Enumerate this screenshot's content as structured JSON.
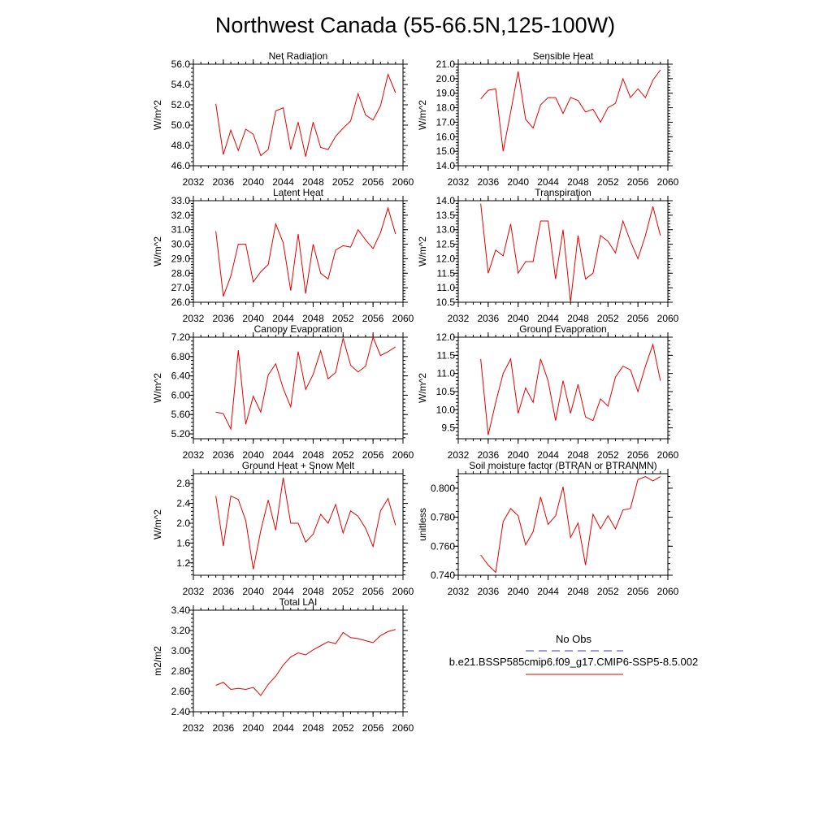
{
  "figure": {
    "title": "Northwest Canada (55-66.5N,125-100W)",
    "legend": {
      "obs_label": "No Obs",
      "obs_color": "#3a3ad6",
      "model_label": "b.e21.BSSP585cmip6.f09_g17.CMIP6-SSP5-8.5.002",
      "model_color": "#e60000"
    }
  },
  "chart_data": [
    {
      "type": "line",
      "title": "Net Radiation",
      "ylabel": "W/m^2",
      "xlim": [
        2032,
        2060
      ],
      "ylim": [
        46.0,
        56.0
      ],
      "xticks": [
        2032,
        2036,
        2040,
        2044,
        2048,
        2052,
        2056,
        2060
      ],
      "yticks": [
        46.0,
        48.0,
        50.0,
        52.0,
        54.0,
        56.0
      ],
      "ytick_labels": [
        "46.0",
        "48.0",
        "50.0",
        "52.0",
        "54.0",
        "56.0"
      ],
      "x": [
        2035,
        2036,
        2037,
        2038,
        2039,
        2040,
        2041,
        2042,
        2043,
        2044,
        2045,
        2046,
        2047,
        2048,
        2049,
        2050,
        2051,
        2052,
        2053,
        2054,
        2055,
        2056,
        2057,
        2058,
        2059
      ],
      "series": [
        {
          "color": "#e60000",
          "values": [
            52.1,
            47.1,
            49.5,
            47.5,
            49.6,
            49.1,
            47.0,
            47.6,
            51.4,
            51.7,
            47.6,
            50.3,
            46.9,
            50.3,
            47.8,
            47.6,
            48.9,
            49.7,
            50.4,
            53.1,
            51.0,
            50.5,
            51.9,
            55.0,
            53.2
          ]
        }
      ]
    },
    {
      "type": "line",
      "title": "Sensible Heat",
      "ylabel": "W/m^2",
      "xlim": [
        2032,
        2060
      ],
      "ylim": [
        14.0,
        21.0
      ],
      "xticks": [
        2032,
        2036,
        2040,
        2044,
        2048,
        2052,
        2056,
        2060
      ],
      "yticks": [
        14.0,
        15.0,
        16.0,
        17.0,
        18.0,
        19.0,
        20.0,
        21.0
      ],
      "ytick_labels": [
        "14.0",
        "15.0",
        "16.0",
        "17.0",
        "18.0",
        "19.0",
        "20.0",
        "21.0"
      ],
      "x": [
        2035,
        2036,
        2037,
        2038,
        2039,
        2040,
        2041,
        2042,
        2043,
        2044,
        2045,
        2046,
        2047,
        2048,
        2049,
        2050,
        2051,
        2052,
        2053,
        2054,
        2055,
        2056,
        2057,
        2058,
        2059
      ],
      "series": [
        {
          "color": "#e60000",
          "values": [
            18.6,
            19.2,
            19.3,
            15.0,
            17.7,
            20.5,
            17.2,
            16.6,
            18.2,
            18.7,
            18.7,
            17.6,
            18.7,
            18.5,
            17.7,
            17.9,
            17.0,
            18.0,
            18.3,
            20.0,
            18.7,
            19.3,
            18.7,
            19.9,
            20.6
          ]
        }
      ]
    },
    {
      "type": "line",
      "title": "Latent Heat",
      "ylabel": "W/m^2",
      "xlim": [
        2032,
        2060
      ],
      "ylim": [
        26.0,
        33.0
      ],
      "xticks": [
        2032,
        2036,
        2040,
        2044,
        2048,
        2052,
        2056,
        2060
      ],
      "yticks": [
        26.0,
        27.0,
        28.0,
        29.0,
        30.0,
        31.0,
        32.0,
        33.0
      ],
      "ytick_labels": [
        "26.0",
        "27.0",
        "28.0",
        "29.0",
        "30.0",
        "31.0",
        "32.0",
        "33.0"
      ],
      "x": [
        2035,
        2036,
        2037,
        2038,
        2039,
        2040,
        2041,
        2042,
        2043,
        2044,
        2045,
        2046,
        2047,
        2048,
        2049,
        2050,
        2051,
        2052,
        2053,
        2054,
        2055,
        2056,
        2057,
        2058,
        2059
      ],
      "series": [
        {
          "color": "#e60000",
          "values": [
            30.9,
            26.4,
            27.8,
            30.0,
            30.0,
            27.4,
            28.1,
            28.6,
            31.4,
            30.1,
            26.8,
            30.7,
            26.6,
            30.0,
            28.0,
            27.6,
            29.6,
            29.9,
            29.8,
            31.0,
            30.3,
            29.7,
            30.8,
            32.5,
            30.7
          ]
        }
      ]
    },
    {
      "type": "line",
      "title": "Transpiration",
      "ylabel": "W/m^2",
      "xlim": [
        2032,
        2060
      ],
      "ylim": [
        10.5,
        14.0
      ],
      "xticks": [
        2032,
        2036,
        2040,
        2044,
        2048,
        2052,
        2056,
        2060
      ],
      "yticks": [
        10.5,
        11.0,
        11.5,
        12.0,
        12.5,
        13.0,
        13.5,
        14.0
      ],
      "ytick_labels": [
        "10.5",
        "11.0",
        "11.5",
        "12.0",
        "12.5",
        "13.0",
        "13.5",
        "14.0"
      ],
      "x": [
        2035,
        2036,
        2037,
        2038,
        2039,
        2040,
        2041,
        2042,
        2043,
        2044,
        2045,
        2046,
        2047,
        2048,
        2049,
        2050,
        2051,
        2052,
        2053,
        2054,
        2055,
        2056,
        2057,
        2058,
        2059
      ],
      "series": [
        {
          "color": "#e60000",
          "values": [
            13.9,
            11.5,
            12.3,
            12.1,
            13.2,
            11.5,
            11.9,
            11.9,
            13.3,
            13.3,
            11.3,
            13.0,
            10.5,
            12.8,
            11.3,
            11.5,
            12.8,
            12.6,
            12.2,
            13.3,
            12.6,
            12.0,
            12.8,
            13.8,
            12.8
          ]
        }
      ]
    },
    {
      "type": "line",
      "title": "Canopy Evaporation",
      "ylabel": "W/m^2",
      "xlim": [
        2032,
        2060
      ],
      "ylim": [
        5.1,
        7.2
      ],
      "xticks": [
        2032,
        2036,
        2040,
        2044,
        2048,
        2052,
        2056,
        2060
      ],
      "yticks": [
        5.2,
        5.6,
        6.0,
        6.4,
        6.8,
        7.2
      ],
      "ytick_labels": [
        "5.20",
        "5.60",
        "6.00",
        "6.40",
        "6.80",
        "7.20"
      ],
      "x": [
        2035,
        2036,
        2037,
        2038,
        2039,
        2040,
        2041,
        2042,
        2043,
        2044,
        2045,
        2046,
        2047,
        2048,
        2049,
        2050,
        2051,
        2052,
        2053,
        2054,
        2055,
        2056,
        2057,
        2058,
        2059
      ],
      "series": [
        {
          "color": "#e60000",
          "values": [
            5.65,
            5.62,
            5.3,
            6.93,
            5.4,
            5.98,
            5.65,
            6.42,
            6.65,
            6.14,
            5.76,
            6.9,
            6.12,
            6.43,
            6.92,
            6.34,
            6.47,
            7.18,
            6.62,
            6.48,
            6.6,
            7.2,
            6.82,
            6.9,
            7.0
          ]
        }
      ]
    },
    {
      "type": "line",
      "title": "Ground Evaporation",
      "ylabel": "W/m^2",
      "xlim": [
        2032,
        2060
      ],
      "ylim": [
        9.2,
        12.0
      ],
      "xticks": [
        2032,
        2036,
        2040,
        2044,
        2048,
        2052,
        2056,
        2060
      ],
      "yticks": [
        9.5,
        10.0,
        10.5,
        11.0,
        11.5,
        12.0
      ],
      "ytick_labels": [
        "9.5",
        "10.0",
        "10.5",
        "11.0",
        "11.5",
        "12.0"
      ],
      "x": [
        2035,
        2036,
        2037,
        2038,
        2039,
        2040,
        2041,
        2042,
        2043,
        2044,
        2045,
        2046,
        2047,
        2048,
        2049,
        2050,
        2051,
        2052,
        2053,
        2054,
        2055,
        2056,
        2057,
        2058,
        2059
      ],
      "series": [
        {
          "color": "#e60000",
          "values": [
            11.4,
            9.3,
            10.2,
            11.0,
            11.4,
            9.9,
            10.6,
            10.2,
            11.4,
            10.8,
            9.7,
            10.8,
            9.9,
            10.7,
            9.8,
            9.7,
            10.3,
            10.1,
            10.9,
            11.2,
            11.1,
            10.5,
            11.2,
            11.8,
            10.8
          ]
        }
      ]
    },
    {
      "type": "line",
      "title": "Ground Heat + Snow Melt",
      "ylabel": "W/m^2",
      "xlim": [
        2032,
        2060
      ],
      "ylim": [
        0.95,
        3.0
      ],
      "xticks": [
        2032,
        2036,
        2040,
        2044,
        2048,
        2052,
        2056,
        2060
      ],
      "yticks": [
        1.2,
        1.6,
        2.0,
        2.4,
        2.8
      ],
      "ytick_labels": [
        "1.2",
        "1.6",
        "2.0",
        "2.4",
        "2.8"
      ],
      "x": [
        2035,
        2036,
        2037,
        2038,
        2039,
        2040,
        2041,
        2042,
        2043,
        2044,
        2045,
        2046,
        2047,
        2048,
        2049,
        2050,
        2051,
        2052,
        2053,
        2054,
        2055,
        2056,
        2057,
        2058,
        2059
      ],
      "series": [
        {
          "color": "#e60000",
          "values": [
            2.55,
            1.54,
            2.55,
            2.48,
            2.05,
            1.07,
            1.85,
            2.47,
            1.86,
            2.92,
            2.0,
            2.0,
            1.62,
            1.78,
            2.18,
            2.0,
            2.38,
            1.8,
            2.25,
            2.14,
            1.9,
            1.53,
            2.25,
            2.5,
            1.96
          ]
        }
      ]
    },
    {
      "type": "line",
      "title": "Soil moisture factor (BTRAN or BTRANMN)",
      "ylabel": "unitless",
      "xlim": [
        2032,
        2060
      ],
      "ylim": [
        0.74,
        0.81
      ],
      "xticks": [
        2032,
        2036,
        2040,
        2044,
        2048,
        2052,
        2056,
        2060
      ],
      "yticks": [
        0.74,
        0.76,
        0.78,
        0.8
      ],
      "ytick_labels": [
        "0.740",
        "0.760",
        "0.780",
        "0.800"
      ],
      "x": [
        2035,
        2036,
        2037,
        2038,
        2039,
        2040,
        2041,
        2042,
        2043,
        2044,
        2045,
        2046,
        2047,
        2048,
        2049,
        2050,
        2051,
        2052,
        2053,
        2054,
        2055,
        2056,
        2057,
        2058,
        2059
      ],
      "series": [
        {
          "color": "#e60000",
          "values": [
            0.754,
            0.747,
            0.742,
            0.777,
            0.786,
            0.781,
            0.761,
            0.77,
            0.794,
            0.775,
            0.781,
            0.801,
            0.766,
            0.776,
            0.747,
            0.782,
            0.772,
            0.781,
            0.772,
            0.785,
            0.786,
            0.806,
            0.808,
            0.805,
            0.808
          ]
        }
      ]
    },
    {
      "type": "line",
      "title": "Total LAI",
      "ylabel": "m2/m2",
      "xlim": [
        2032,
        2060
      ],
      "ylim": [
        2.4,
        3.4
      ],
      "xticks": [
        2032,
        2036,
        2040,
        2044,
        2048,
        2052,
        2056,
        2060
      ],
      "yticks": [
        2.4,
        2.6,
        2.8,
        3.0,
        3.2,
        3.4
      ],
      "ytick_labels": [
        "2.40",
        "2.60",
        "2.80",
        "3.00",
        "3.20",
        "3.40"
      ],
      "x": [
        2035,
        2036,
        2037,
        2038,
        2039,
        2040,
        2041,
        2042,
        2043,
        2044,
        2045,
        2046,
        2047,
        2048,
        2049,
        2050,
        2051,
        2052,
        2053,
        2054,
        2055,
        2056,
        2057,
        2058,
        2059
      ],
      "series": [
        {
          "color": "#e60000",
          "values": [
            2.66,
            2.69,
            2.62,
            2.63,
            2.62,
            2.64,
            2.56,
            2.67,
            2.75,
            2.86,
            2.94,
            2.98,
            2.96,
            3.01,
            3.05,
            3.09,
            3.07,
            3.18,
            3.13,
            3.12,
            3.1,
            3.08,
            3.15,
            3.19,
            3.21
          ]
        }
      ]
    }
  ]
}
